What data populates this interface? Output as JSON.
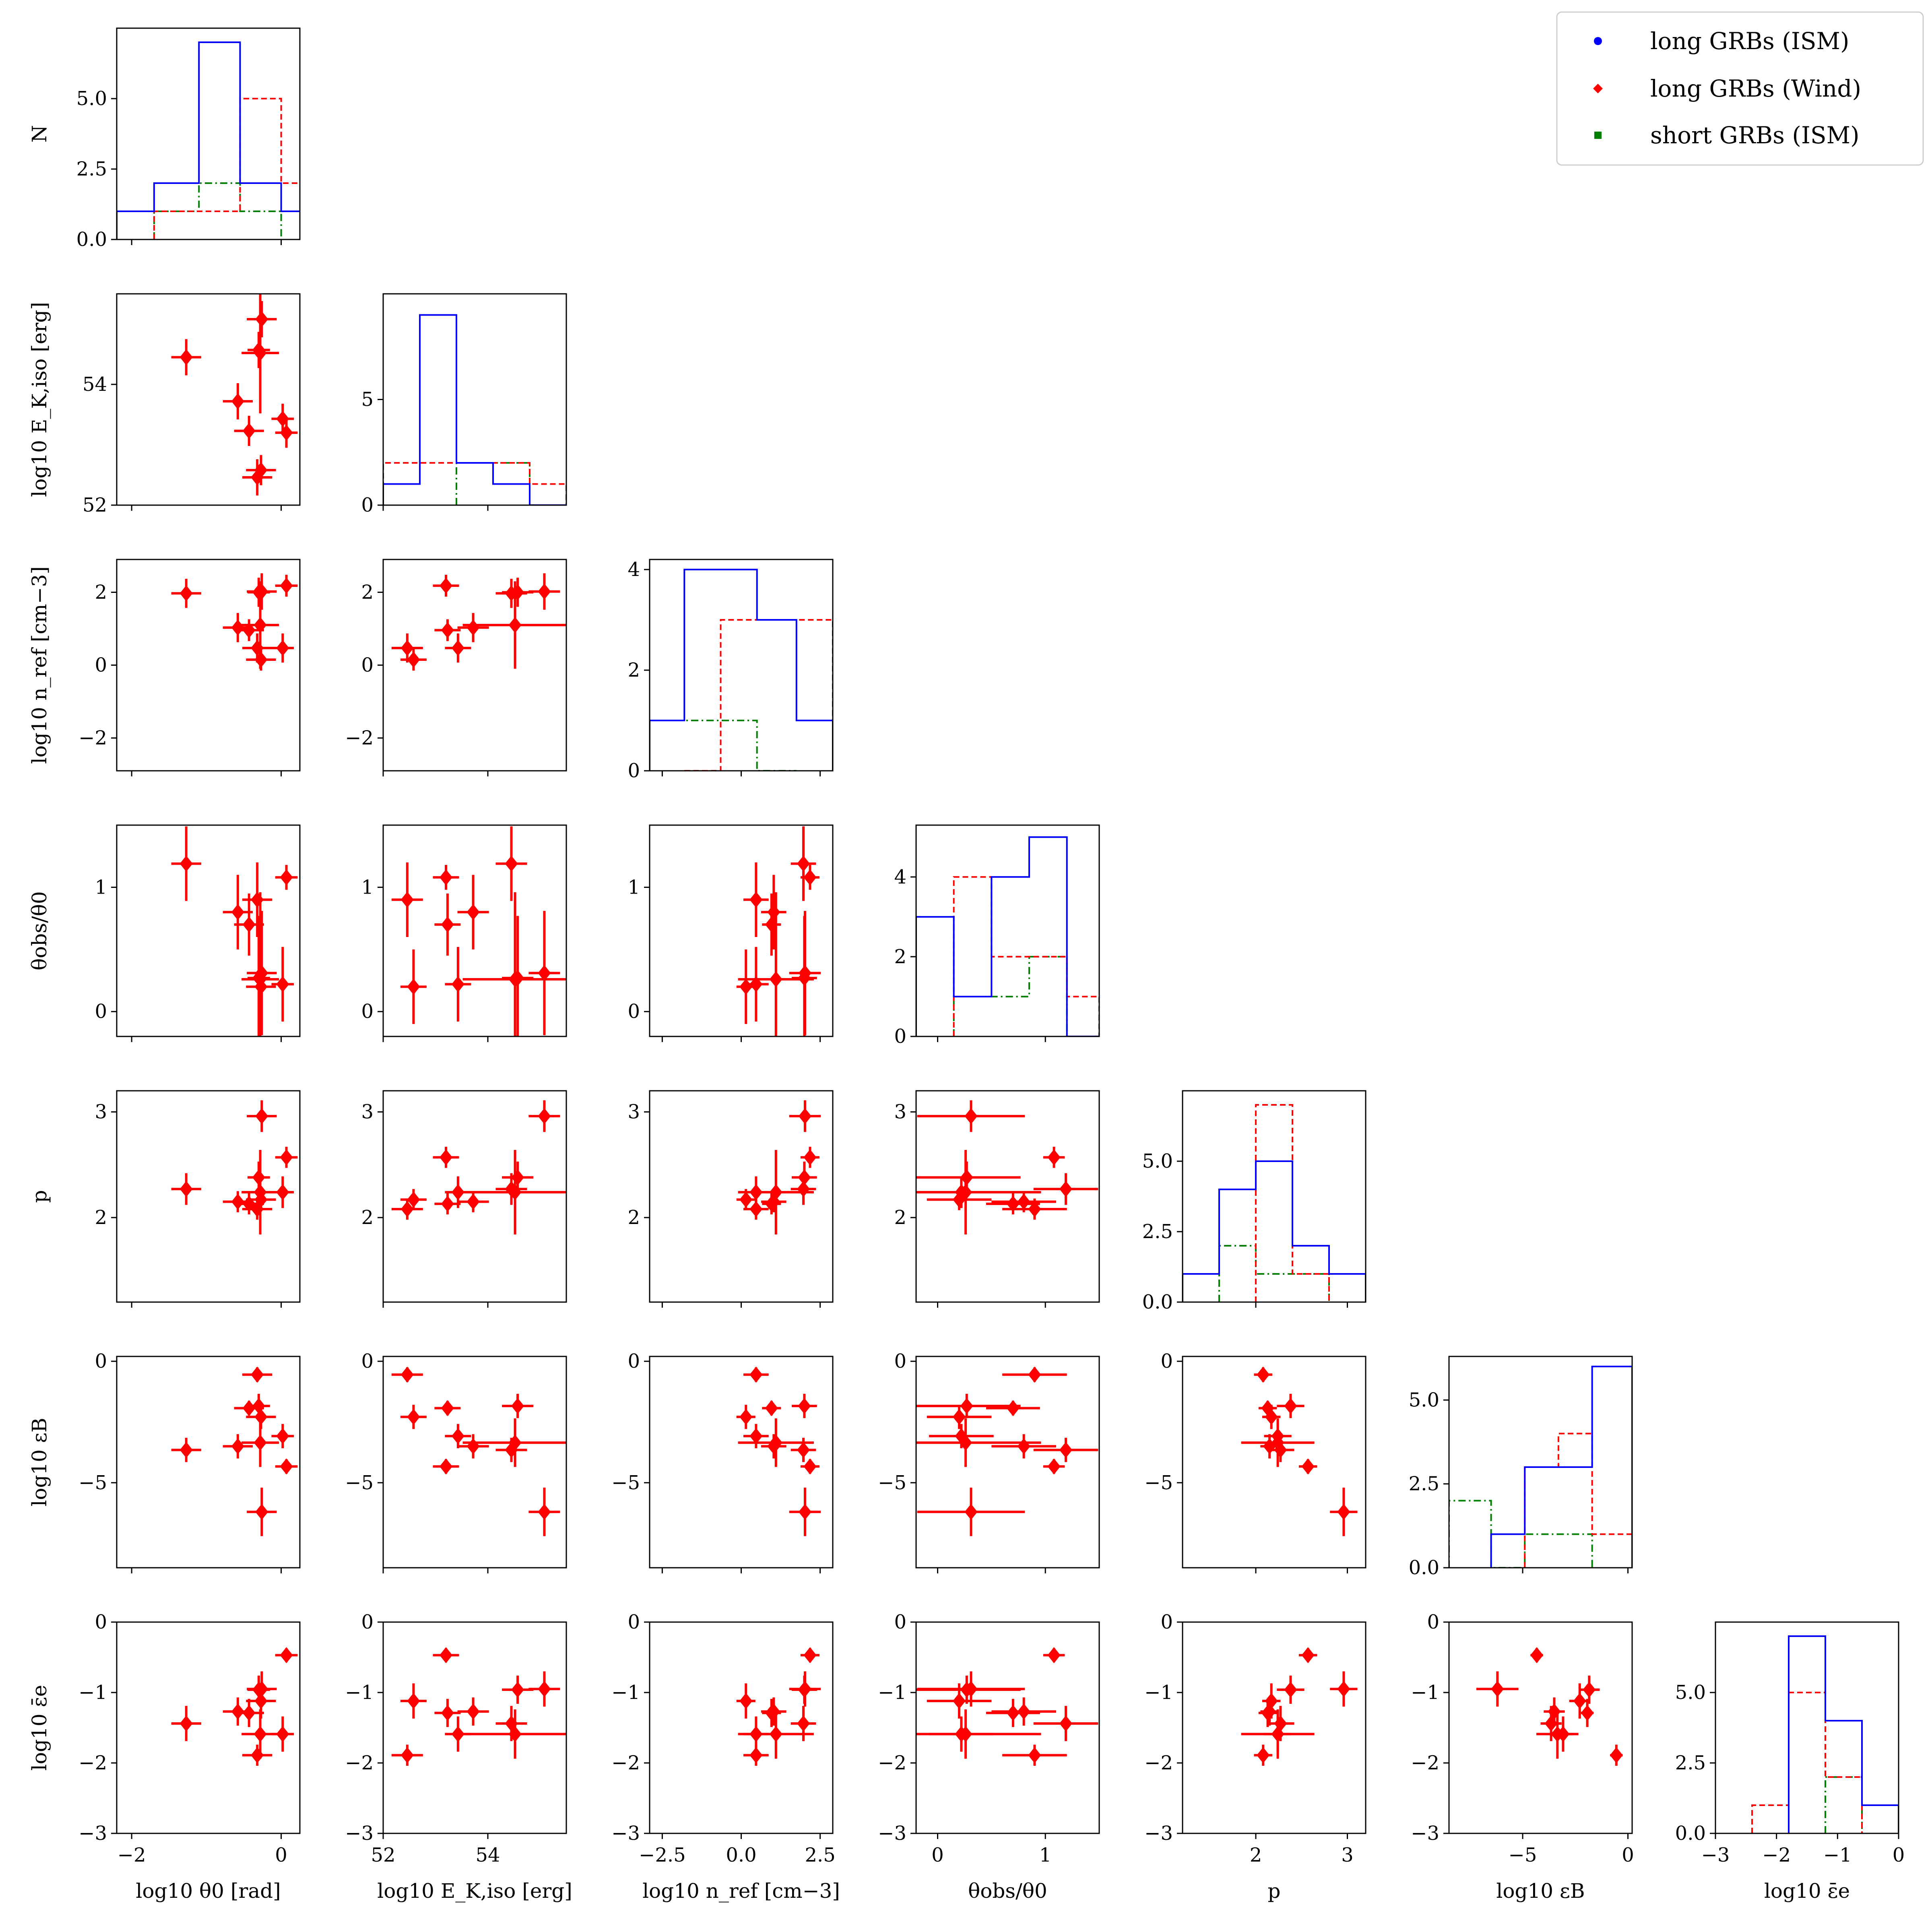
{
  "chart_data": {
    "type": "scatter",
    "title": "",
    "legend": {
      "placement": "top-right",
      "entries": [
        {
          "label": "long GRBs (ISM)",
          "color": "#0000ff",
          "marker": "circle"
        },
        {
          "label": "long GRBs (Wind)",
          "color": "#ff0000",
          "marker": "diamond"
        },
        {
          "label": "short GRBs (ISM)",
          "color": "#008000",
          "marker": "square"
        }
      ]
    },
    "variables": [
      {
        "key": "theta0",
        "label": "log10 θ0 [rad]",
        "range": [
          -2.2,
          0.25
        ],
        "ticks": [
          -2,
          0
        ],
        "tick_labels": [
          "−2",
          "0"
        ]
      },
      {
        "key": "Ek",
        "label": "log10 E_K,iso [erg]",
        "range": [
          52,
          55.5
        ],
        "ticks": [
          52,
          54
        ],
        "tick_labels": [
          "52",
          "54"
        ]
      },
      {
        "key": "n",
        "label": "log10 n_ref [cm−3]",
        "range": [
          -2.9,
          2.9
        ],
        "ticks": [
          -2,
          0,
          2
        ],
        "tick_labels": [
          "−2",
          "0",
          "2"
        ]
      },
      {
        "key": "thobs",
        "label": "θobs/θ0",
        "range": [
          -0.2,
          1.5
        ],
        "ticks": [
          0,
          1
        ],
        "tick_labels": [
          "0",
          "1"
        ]
      },
      {
        "key": "p",
        "label": "p",
        "range": [
          1.2,
          3.2
        ],
        "ticks": [
          2,
          3
        ],
        "tick_labels": [
          "2",
          "3"
        ]
      },
      {
        "key": "eB",
        "label": "log10 εB",
        "range": [
          -8.5,
          0.2
        ],
        "ticks": [
          -5,
          0
        ],
        "tick_labels": [
          "−5",
          "0"
        ]
      },
      {
        "key": "ee",
        "label": "log10 ε̄e",
        "range": [
          -3,
          0
        ],
        "ticks": [
          -3,
          -2,
          -1,
          0
        ],
        "tick_labels": [
          "−3",
          "−2",
          "−1",
          "0"
        ]
      }
    ],
    "tick_labels_extra": {
      "n_x": [
        "−2.5",
        "0.0",
        "2.5"
      ],
      "n_x_ticks": [
        -2.5,
        0,
        2.5
      ]
    },
    "wind_points": [
      {
        "theta0": -1.27,
        "theta0_err": 0.2,
        "Ek": 54.45,
        "Ek_err": 0.3,
        "n": 1.97,
        "n_err": 0.4,
        "thobs": 1.19,
        "thobs_err": 0.3,
        "p": 2.27,
        "p_err": 0.15,
        "eB": -3.65,
        "eB_err": 0.5,
        "ee": -1.44,
        "ee_err": 0.25
      },
      {
        "theta0": -0.58,
        "theta0_err": 0.2,
        "Ek": 53.72,
        "Ek_err": 0.3,
        "n": 1.03,
        "n_err": 0.4,
        "thobs": 0.8,
        "thobs_err": 0.3,
        "p": 2.15,
        "p_err": 0.1,
        "eB": -3.5,
        "eB_err": 0.5,
        "ee": -1.27,
        "ee_err": 0.2
      },
      {
        "theta0": -0.43,
        "theta0_err": 0.2,
        "Ek": 53.23,
        "Ek_err": 0.25,
        "n": 0.96,
        "n_err": 0.3,
        "thobs": 0.7,
        "thobs_err": 0.25,
        "p": 2.13,
        "p_err": 0.1,
        "eB": -1.93,
        "eB_err": 0.3,
        "ee": -1.29,
        "ee_err": 0.2
      },
      {
        "theta0": -0.3,
        "theta0_err": 0.15,
        "Ek": 54.57,
        "Ek_err": 0.3,
        "n": 2.0,
        "n_err": 0.4,
        "thobs": 0.27,
        "thobs_err": 0.5,
        "p": 2.38,
        "p_err": 0.15,
        "eB": -1.84,
        "eB_err": 0.5,
        "ee": -0.96,
        "ee_err": 0.2
      },
      {
        "theta0": -0.32,
        "theta0_err": 0.2,
        "Ek": 52.46,
        "Ek_err": 0.3,
        "n": 0.47,
        "n_err": 0.4,
        "thobs": 0.9,
        "thobs_err": 0.3,
        "p": 2.08,
        "p_err": 0.1,
        "eB": -0.55,
        "eB_err": 0.3,
        "ee": -1.89,
        "ee_err": 0.15
      },
      {
        "theta0": -0.27,
        "theta0_err": 0.2,
        "Ek": 52.58,
        "Ek_err": 0.25,
        "n": 0.15,
        "n_err": 0.3,
        "thobs": 0.2,
        "thobs_err": 0.3,
        "p": 2.17,
        "p_err": 0.1,
        "eB": -2.29,
        "eB_err": 0.5,
        "ee": -1.12,
        "ee_err": 0.25
      },
      {
        "theta0": -0.26,
        "theta0_err": 0.2,
        "Ek": 55.08,
        "Ek_err": 0.3,
        "n": 2.02,
        "n_err": 0.5,
        "thobs": 0.31,
        "thobs_err": 0.5,
        "p": 2.96,
        "p_err": 0.15,
        "eB": -6.2,
        "eB_err": 1.0,
        "ee": -0.95,
        "ee_err": 0.25
      },
      {
        "theta0": -0.28,
        "theta0_err": 0.25,
        "Ek": 54.52,
        "Ek_err": 1.0,
        "n": 1.1,
        "n_err": 1.2,
        "thobs": 0.26,
        "thobs_err": 0.7,
        "p": 2.24,
        "p_err": 0.4,
        "eB": -3.35,
        "eB_err": 1.0,
        "ee": -1.59,
        "ee_err": 0.35
      },
      {
        "theta0": 0.07,
        "theta0_err": 0.15,
        "Ek": 53.2,
        "Ek_err": 0.25,
        "n": 2.18,
        "n_err": 0.3,
        "thobs": 1.08,
        "thobs_err": 0.1,
        "p": 2.57,
        "p_err": 0.1,
        "eB": -4.33,
        "eB_err": 0.3,
        "ee": -0.47,
        "ee_err": 0.1
      },
      {
        "theta0": 0.02,
        "theta0_err": 0.15,
        "Ek": 53.43,
        "Ek_err": 0.25,
        "n": 0.47,
        "n_err": 0.4,
        "thobs": 0.22,
        "thobs_err": 0.3,
        "p": 2.24,
        "p_err": 0.15,
        "eB": -3.08,
        "eB_err": 0.5,
        "ee": -1.59,
        "ee_err": 0.25
      }
    ],
    "histograms": [
      {
        "key": "theta0",
        "ylim": [
          0,
          7.5
        ],
        "yticks": [
          0,
          2.5,
          5.0
        ],
        "ytick_labels": [
          "0.0",
          "2.5",
          "5.0"
        ],
        "ylabel": "N",
        "ism": {
          "edges": [
            -2.2,
            -1.7,
            -1.1,
            -0.55,
            0,
            0.5
          ],
          "counts": [
            1,
            2,
            7,
            2,
            1
          ]
        },
        "wind": {
          "edges": [
            -1.7,
            -1.1,
            -0.55,
            0,
            0.5
          ],
          "counts": [
            1,
            1,
            5,
            2
          ]
        },
        "short": {
          "edges": [
            -1.7,
            -1.1,
            -0.55,
            0
          ],
          "counts": [
            1,
            2,
            1
          ]
        }
      },
      {
        "key": "Ek",
        "ylim": [
          0,
          10
        ],
        "yticks": [
          0,
          5
        ],
        "ytick_labels": [
          "0",
          "5"
        ],
        "ism": {
          "edges": [
            52,
            52.7,
            53.4,
            54.1,
            54.8,
            55.5
          ],
          "counts": [
            1,
            9,
            2,
            1,
            0
          ]
        },
        "wind": {
          "edges": [
            52,
            54.8,
            55.5
          ],
          "counts": [
            2,
            1
          ]
        },
        "short": {
          "edges": [
            53.4,
            54.8
          ],
          "counts": [
            2
          ]
        }
      },
      {
        "key": "n",
        "ylim": [
          0,
          4.2
        ],
        "yticks": [
          0,
          2,
          4
        ],
        "ytick_labels": [
          "0",
          "2",
          "4"
        ],
        "ism": {
          "edges": [
            -2.9,
            -1.8,
            0.5,
            1.75,
            2.9
          ],
          "counts": [
            1,
            4,
            3,
            1
          ]
        },
        "wind": {
          "edges": [
            -1.8,
            -0.65,
            2.9
          ],
          "counts": [
            0,
            3
          ]
        },
        "short": {
          "edges": [
            -2.9,
            0.5,
            1.75
          ],
          "counts": [
            1,
            0
          ]
        }
      },
      {
        "key": "thobs",
        "ylim": [
          0,
          5.3
        ],
        "yticks": [
          0,
          2,
          4
        ],
        "ytick_labels": [
          "0",
          "2",
          "4"
        ],
        "ism": {
          "edges": [
            -0.2,
            0.15,
            0.5,
            0.85,
            1.2,
            1.5
          ],
          "counts": [
            3,
            1,
            4,
            5,
            0
          ]
        },
        "wind": {
          "edges": [
            0.15,
            0.5,
            0.85,
            1.2,
            1.5
          ],
          "counts": [
            4,
            2,
            2,
            1
          ]
        },
        "short": {
          "edges": [
            0.15,
            0.85,
            1.2
          ],
          "counts": [
            1,
            2
          ]
        }
      },
      {
        "key": "p",
        "ylim": [
          0,
          7.5
        ],
        "yticks": [
          0,
          2.5,
          5.0
        ],
        "ytick_labels": [
          "0.0",
          "2.5",
          "5.0"
        ],
        "ism": {
          "edges": [
            1.2,
            1.6,
            2.0,
            2.4,
            2.8,
            3.2
          ],
          "counts": [
            1,
            4,
            5,
            2,
            1
          ]
        },
        "wind": {
          "edges": [
            2.0,
            2.4,
            2.8
          ],
          "counts": [
            7,
            1
          ]
        },
        "short": {
          "edges": [
            1.6,
            2.0,
            2.8
          ],
          "counts": [
            2,
            1
          ]
        }
      },
      {
        "key": "eB",
        "ylim": [
          0,
          6.3
        ],
        "yticks": [
          0,
          2.5,
          5.0
        ],
        "ytick_labels": [
          "0.0",
          "2.5",
          "5.0"
        ],
        "ism": {
          "edges": [
            -6.5,
            -4.9,
            -3.3,
            -1.7,
            0.2
          ],
          "counts": [
            1,
            3,
            3,
            6
          ]
        },
        "wind": {
          "edges": [
            -4.9,
            -3.3,
            -1.7,
            0.2
          ],
          "counts": [
            3,
            4,
            1
          ]
        },
        "short": {
          "edges": [
            -8.5,
            -6.5,
            -4.9,
            -1.7
          ],
          "counts": [
            2,
            0,
            1
          ]
        }
      },
      {
        "key": "ee",
        "ylim": [
          0,
          7.5
        ],
        "yticks": [
          0,
          2.5,
          5.0
        ],
        "ytick_labels": [
          "0.0",
          "2.5",
          "5.0"
        ],
        "ism": {
          "edges": [
            -1.8,
            -1.2,
            -0.6,
            0
          ],
          "counts": [
            7,
            4,
            1
          ]
        },
        "wind": {
          "edges": [
            -2.4,
            -1.8,
            -1.2,
            -0.6
          ],
          "counts": [
            1,
            5,
            2
          ]
        },
        "short": {
          "edges": [
            -1.2,
            -0.6
          ],
          "counts": [
            2
          ]
        }
      }
    ]
  }
}
